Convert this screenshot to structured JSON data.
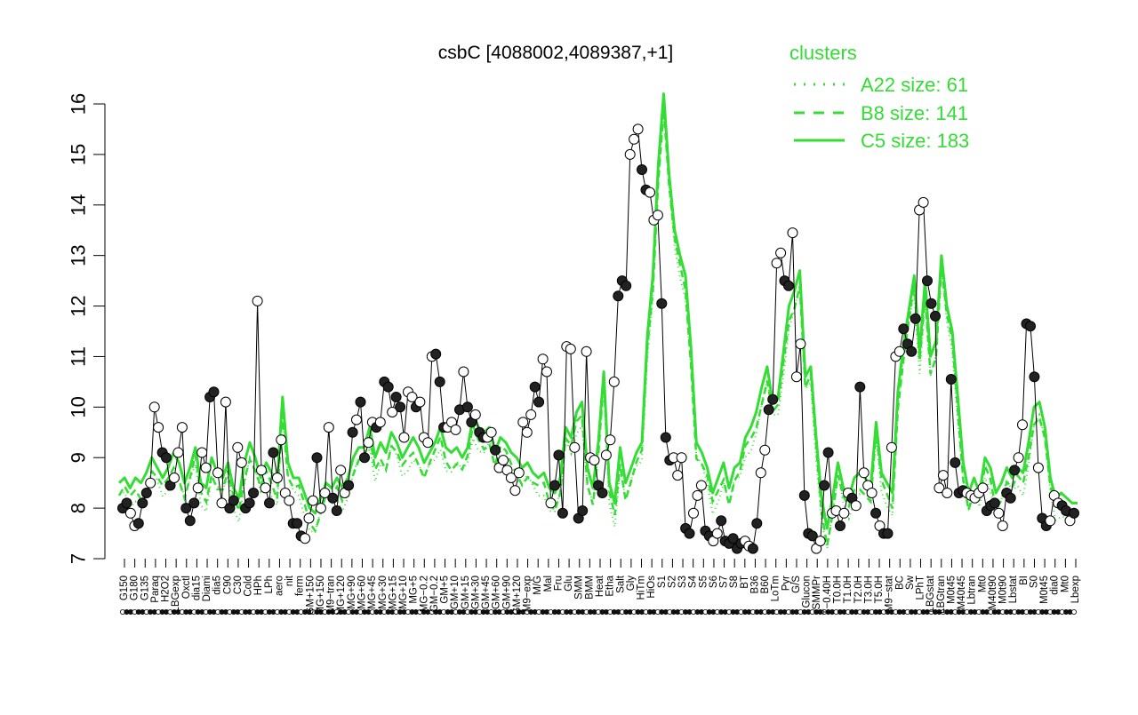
{
  "chart_data": {
    "type": "line",
    "title": "csbC [4088002,4089387,+1]",
    "xlabel": "",
    "ylabel": "",
    "ylim": [
      7,
      16
    ],
    "yticks": [
      7,
      8,
      9,
      10,
      11,
      12,
      13,
      14,
      15,
      16
    ],
    "xtick_labels": [
      "G150",
      "G180",
      "G135",
      "Paraq",
      "H2O2",
      "LBGexp",
      "Oxctl",
      "dia15",
      "Diami",
      "dia5",
      "C90",
      "C30",
      "Cold",
      "HPh",
      "LPh",
      "aero",
      "nit",
      "ferm",
      "GM+150",
      "MG+150",
      "M9−tran",
      "MG+120",
      "MG+90",
      "MG+60",
      "MG+45",
      "MG+30",
      "MG+15",
      "MG+10",
      "MG+5",
      "MG−0.2",
      "GM−0.2",
      "GM+5",
      "GM+10",
      "GM+15",
      "GM+30",
      "GM+45",
      "GM+60",
      "GM+90",
      "GM+120",
      "M9−exp",
      "M/G",
      "Mal",
      "Fru",
      "Glu",
      "SMM",
      "BMM",
      "Heat",
      "Etha",
      "Salt",
      "Gly",
      "HiTm",
      "HiOs",
      "S1",
      "S2",
      "S3",
      "S4",
      "S5",
      "S6",
      "S7",
      "S8",
      "BT",
      "B36",
      "B60",
      "LoTm",
      "Pyr",
      "G/S",
      "Glucon",
      "SMMPr",
      "T−0.40H",
      "T0.0H",
      "T1.0H",
      "T2.0H",
      "T3.0H",
      "T5.0H",
      "M9−stat",
      "BC",
      "Sw",
      "LPhT",
      "LBGstat",
      "LBGtran",
      "M0t45",
      "M40t45",
      "Lbtran",
      "Mt0",
      "M40t90",
      "M0t90",
      "Lbstat",
      "BI",
      "S0",
      "M0t45",
      "dia0",
      "Mt0",
      "Lbexp"
    ],
    "legend": {
      "title": "clusters",
      "placement": "top-right",
      "entries": [
        {
          "label": "A22 size: 61",
          "style": "dotted"
        },
        {
          "label": "B8 size: 141",
          "style": "dashed"
        },
        {
          "label": "C5 size: 183",
          "style": "solid"
        }
      ]
    },
    "colors": {
      "cluster": "#33dd33",
      "gene": "#000000",
      "axis": "#000000"
    },
    "points": [
      {
        "y": 8.0,
        "filled": true
      },
      {
        "y": 8.1,
        "filled": true
      },
      {
        "y": 7.9,
        "filled": false
      },
      {
        "y": 7.65,
        "filled": false
      },
      {
        "y": 7.7,
        "filled": true
      },
      {
        "y": 8.1,
        "filled": true
      },
      {
        "y": 8.3,
        "filled": true
      },
      {
        "y": 8.5,
        "filled": false
      },
      {
        "y": 10.0,
        "filled": false
      },
      {
        "y": 9.6,
        "filled": false
      },
      {
        "y": 9.1,
        "filled": true
      },
      {
        "y": 9.0,
        "filled": true
      },
      {
        "y": 8.45,
        "filled": true
      },
      {
        "y": 8.6,
        "filled": false
      },
      {
        "y": 9.1,
        "filled": false
      },
      {
        "y": 9.6,
        "filled": false
      },
      {
        "y": 8.0,
        "filled": true
      },
      {
        "y": 7.75,
        "filled": true
      },
      {
        "y": 8.1,
        "filled": true
      },
      {
        "y": 8.4,
        "filled": false
      },
      {
        "y": 9.1,
        "filled": false
      },
      {
        "y": 8.8,
        "filled": false
      },
      {
        "y": 10.2,
        "filled": true
      },
      {
        "y": 10.3,
        "filled": true
      },
      {
        "y": 8.7,
        "filled": false
      },
      {
        "y": 8.1,
        "filled": false
      },
      {
        "y": 10.1,
        "filled": false
      },
      {
        "y": 8.0,
        "filled": true
      },
      {
        "y": 8.15,
        "filled": true
      },
      {
        "y": 9.2,
        "filled": false
      },
      {
        "y": 8.9,
        "filled": false
      },
      {
        "y": 8.0,
        "filled": true
      },
      {
        "y": 8.1,
        "filled": true
      },
      {
        "y": 8.3,
        "filled": true
      },
      {
        "y": 12.1,
        "filled": false
      },
      {
        "y": 8.75,
        "filled": false
      },
      {
        "y": 8.4,
        "filled": false
      },
      {
        "y": 8.1,
        "filled": true
      },
      {
        "y": 9.1,
        "filled": true
      },
      {
        "y": 8.6,
        "filled": false
      },
      {
        "y": 9.35,
        "filled": false
      },
      {
        "y": 8.3,
        "filled": false
      },
      {
        "y": 8.15,
        "filled": false
      },
      {
        "y": 7.7,
        "filled": true
      },
      {
        "y": 7.7,
        "filled": true
      },
      {
        "y": 7.45,
        "filled": true
      },
      {
        "y": 7.4,
        "filled": false
      },
      {
        "y": 7.8,
        "filled": false
      },
      {
        "y": 8.15,
        "filled": false
      },
      {
        "y": 9.0,
        "filled": true
      },
      {
        "y": 8.0,
        "filled": false
      },
      {
        "y": 8.3,
        "filled": false
      },
      {
        "y": 9.6,
        "filled": false
      },
      {
        "y": 8.2,
        "filled": true
      },
      {
        "y": 7.95,
        "filled": true
      },
      {
        "y": 8.75,
        "filled": false
      },
      {
        "y": 8.3,
        "filled": false
      },
      {
        "y": 8.45,
        "filled": true
      },
      {
        "y": 9.5,
        "filled": true
      },
      {
        "y": 9.75,
        "filled": false
      },
      {
        "y": 10.1,
        "filled": true
      },
      {
        "y": 9.0,
        "filled": true
      },
      {
        "y": 9.3,
        "filled": false
      },
      {
        "y": 9.7,
        "filled": false
      },
      {
        "y": 9.6,
        "filled": true
      },
      {
        "y": 9.7,
        "filled": false
      },
      {
        "y": 10.5,
        "filled": true
      },
      {
        "y": 10.4,
        "filled": true
      },
      {
        "y": 9.9,
        "filled": false
      },
      {
        "y": 10.2,
        "filled": true
      },
      {
        "y": 10.0,
        "filled": true
      },
      {
        "y": 9.4,
        "filled": false
      },
      {
        "y": 10.3,
        "filled": false
      },
      {
        "y": 10.2,
        "filled": false
      },
      {
        "y": 10.0,
        "filled": true
      },
      {
        "y": 10.1,
        "filled": false
      },
      {
        "y": 9.4,
        "filled": false
      },
      {
        "y": 9.3,
        "filled": false
      },
      {
        "y": 11.0,
        "filled": false
      },
      {
        "y": 11.05,
        "filled": true
      },
      {
        "y": 10.5,
        "filled": true
      },
      {
        "y": 9.6,
        "filled": true
      },
      {
        "y": 9.6,
        "filled": false
      },
      {
        "y": 9.7,
        "filled": false
      },
      {
        "y": 9.55,
        "filled": false
      },
      {
        "y": 9.95,
        "filled": true
      },
      {
        "y": 10.7,
        "filled": false
      },
      {
        "y": 10.0,
        "filled": true
      },
      {
        "y": 9.7,
        "filled": true
      },
      {
        "y": 9.85,
        "filled": false
      },
      {
        "y": 9.5,
        "filled": true
      },
      {
        "y": 9.4,
        "filled": true
      },
      {
        "y": 9.4,
        "filled": false
      },
      {
        "y": 9.5,
        "filled": false
      },
      {
        "y": 9.15,
        "filled": true
      },
      {
        "y": 8.8,
        "filled": false
      },
      {
        "y": 8.95,
        "filled": false
      },
      {
        "y": 8.75,
        "filled": false
      },
      {
        "y": 8.6,
        "filled": false
      },
      {
        "y": 8.35,
        "filled": false
      },
      {
        "y": 8.7,
        "filled": false
      },
      {
        "y": 9.7,
        "filled": false
      },
      {
        "y": 9.5,
        "filled": false
      },
      {
        "y": 9.85,
        "filled": false
      },
      {
        "y": 10.4,
        "filled": true
      },
      {
        "y": 10.1,
        "filled": true
      },
      {
        "y": 10.95,
        "filled": false
      },
      {
        "y": 10.7,
        "filled": false
      },
      {
        "y": 8.1,
        "filled": false
      },
      {
        "y": 8.45,
        "filled": true
      },
      {
        "y": 9.05,
        "filled": true
      },
      {
        "y": 7.9,
        "filled": true
      },
      {
        "y": 11.2,
        "filled": false
      },
      {
        "y": 11.15,
        "filled": false
      },
      {
        "y": 9.2,
        "filled": false
      },
      {
        "y": 7.8,
        "filled": true
      },
      {
        "y": 7.95,
        "filled": true
      },
      {
        "y": 11.1,
        "filled": false
      },
      {
        "y": 9.0,
        "filled": false
      },
      {
        "y": 8.95,
        "filled": false
      },
      {
        "y": 8.45,
        "filled": true
      },
      {
        "y": 8.3,
        "filled": true
      },
      {
        "y": 9.05,
        "filled": false
      },
      {
        "y": 9.35,
        "filled": false
      },
      {
        "y": 10.5,
        "filled": false
      },
      {
        "y": 12.2,
        "filled": true
      },
      {
        "y": 12.5,
        "filled": true
      },
      {
        "y": 12.4,
        "filled": true
      },
      {
        "y": 15.0,
        "filled": false
      },
      {
        "y": 15.3,
        "filled": false
      },
      {
        "y": 15.5,
        "filled": false
      },
      {
        "y": 14.7,
        "filled": true
      },
      {
        "y": 14.3,
        "filled": true
      },
      {
        "y": 14.25,
        "filled": false
      },
      {
        "y": 13.7,
        "filled": false
      },
      {
        "y": 13.8,
        "filled": false
      },
      {
        "y": 12.05,
        "filled": true
      },
      {
        "y": 9.4,
        "filled": true
      },
      {
        "y": 8.95,
        "filled": true
      },
      {
        "y": 9.0,
        "filled": false
      },
      {
        "y": 8.65,
        "filled": false
      },
      {
        "y": 9.0,
        "filled": false
      },
      {
        "y": 7.6,
        "filled": true
      },
      {
        "y": 7.5,
        "filled": true
      },
      {
        "y": 7.9,
        "filled": false
      },
      {
        "y": 8.25,
        "filled": false
      },
      {
        "y": 8.45,
        "filled": false
      },
      {
        "y": 7.55,
        "filled": true
      },
      {
        "y": 7.45,
        "filled": true
      },
      {
        "y": 7.35,
        "filled": false
      },
      {
        "y": 7.5,
        "filled": false
      },
      {
        "y": 7.75,
        "filled": true
      },
      {
        "y": 7.35,
        "filled": true
      },
      {
        "y": 7.3,
        "filled": true
      },
      {
        "y": 7.4,
        "filled": true
      },
      {
        "y": 7.2,
        "filled": true
      },
      {
        "y": 7.3,
        "filled": true
      },
      {
        "y": 7.35,
        "filled": false
      },
      {
        "y": 7.25,
        "filled": false
      },
      {
        "y": 7.2,
        "filled": true
      },
      {
        "y": 7.7,
        "filled": true
      },
      {
        "y": 8.7,
        "filled": false
      },
      {
        "y": 9.15,
        "filled": false
      },
      {
        "y": 9.95,
        "filled": true
      },
      {
        "y": 10.15,
        "filled": true
      },
      {
        "y": 12.85,
        "filled": false
      },
      {
        "y": 13.05,
        "filled": false
      },
      {
        "y": 12.5,
        "filled": true
      },
      {
        "y": 12.4,
        "filled": true
      },
      {
        "y": 13.45,
        "filled": false
      },
      {
        "y": 10.6,
        "filled": false
      },
      {
        "y": 11.25,
        "filled": false
      },
      {
        "y": 8.25,
        "filled": true
      },
      {
        "y": 7.5,
        "filled": true
      },
      {
        "y": 7.45,
        "filled": true
      },
      {
        "y": 7.2,
        "filled": false
      },
      {
        "y": 7.35,
        "filled": false
      },
      {
        "y": 8.45,
        "filled": true
      },
      {
        "y": 9.1,
        "filled": true
      },
      {
        "y": 7.9,
        "filled": false
      },
      {
        "y": 7.95,
        "filled": false
      },
      {
        "y": 7.65,
        "filled": true
      },
      {
        "y": 7.9,
        "filled": false
      },
      {
        "y": 8.3,
        "filled": false
      },
      {
        "y": 8.2,
        "filled": true
      },
      {
        "y": 8.05,
        "filled": false
      },
      {
        "y": 10.4,
        "filled": true
      },
      {
        "y": 8.7,
        "filled": false
      },
      {
        "y": 8.45,
        "filled": false
      },
      {
        "y": 8.3,
        "filled": false
      },
      {
        "y": 7.9,
        "filled": true
      },
      {
        "y": 7.65,
        "filled": false
      },
      {
        "y": 7.5,
        "filled": true
      },
      {
        "y": 7.5,
        "filled": true
      },
      {
        "y": 9.2,
        "filled": false
      },
      {
        "y": 11.0,
        "filled": false
      },
      {
        "y": 11.1,
        "filled": false
      },
      {
        "y": 11.55,
        "filled": true
      },
      {
        "y": 11.25,
        "filled": true
      },
      {
        "y": 11.1,
        "filled": true
      },
      {
        "y": 11.75,
        "filled": true
      },
      {
        "y": 13.9,
        "filled": false
      },
      {
        "y": 14.05,
        "filled": false
      },
      {
        "y": 12.5,
        "filled": true
      },
      {
        "y": 12.05,
        "filled": true
      },
      {
        "y": 11.8,
        "filled": true
      },
      {
        "y": 8.4,
        "filled": false
      },
      {
        "y": 8.65,
        "filled": false
      },
      {
        "y": 8.3,
        "filled": false
      },
      {
        "y": 10.55,
        "filled": true
      },
      {
        "y": 8.9,
        "filled": true
      },
      {
        "y": 8.3,
        "filled": true
      },
      {
        "y": 8.35,
        "filled": true
      },
      {
        "y": 8.3,
        "filled": false
      },
      {
        "y": 8.25,
        "filled": false
      },
      {
        "y": 8.2,
        "filled": false
      },
      {
        "y": 8.3,
        "filled": false
      },
      {
        "y": 8.4,
        "filled": false
      },
      {
        "y": 7.95,
        "filled": true
      },
      {
        "y": 8.05,
        "filled": true
      },
      {
        "y": 8.1,
        "filled": true
      },
      {
        "y": 7.9,
        "filled": false
      },
      {
        "y": 7.65,
        "filled": false
      },
      {
        "y": 8.3,
        "filled": true
      },
      {
        "y": 8.2,
        "filled": true
      },
      {
        "y": 8.75,
        "filled": true
      },
      {
        "y": 9.0,
        "filled": false
      },
      {
        "y": 9.65,
        "filled": false
      },
      {
        "y": 11.65,
        "filled": true
      },
      {
        "y": 11.6,
        "filled": true
      },
      {
        "y": 10.6,
        "filled": true
      },
      {
        "y": 8.8,
        "filled": false
      },
      {
        "y": 7.8,
        "filled": true
      },
      {
        "y": 7.65,
        "filled": true
      },
      {
        "y": 7.75,
        "filled": false
      },
      {
        "y": 8.25,
        "filled": false
      },
      {
        "y": 8.1,
        "filled": false
      },
      {
        "y": 8.05,
        "filled": true
      },
      {
        "y": 7.95,
        "filled": true
      },
      {
        "y": 7.75,
        "filled": false
      },
      {
        "y": 7.9,
        "filled": true
      }
    ],
    "cluster_c5": [
      8.5,
      8.6,
      8.4,
      8.6,
      8.5,
      8.7,
      9.0,
      8.8,
      8.6,
      8.8,
      9.1,
      8.9,
      8.5,
      8.8,
      9.2,
      8.5,
      8.4,
      9.0,
      8.7,
      8.6,
      8.9,
      8.4,
      8.2,
      8.9,
      9.3,
      9.0,
      8.6,
      8.9,
      8.7,
      8.5,
      10.2,
      8.9,
      8.6,
      8.6,
      8.3,
      8.0,
      7.9,
      8.2,
      8.5,
      8.4,
      8.6,
      8.4,
      8.6,
      9.0,
      9.2,
      9.2,
      9.6,
      9.0,
      9.3,
      9.1,
      9.5,
      9.3,
      9.0,
      9.2,
      9.4,
      9.2,
      8.9,
      9.1,
      9.3,
      9.6,
      9.2,
      9.1,
      9.2,
      9.0,
      9.2,
      9.8,
      9.6,
      9.5,
      9.6,
      9.1,
      9.4,
      9.3,
      9.1,
      9.0,
      8.8,
      8.9,
      8.7,
      8.6,
      8.7,
      8.4,
      8.3,
      8.6,
      9.6,
      9.4,
      9.9,
      10.1,
      8.8,
      8.4,
      9.3,
      10.7,
      8.5,
      8.1,
      9.2,
      8.5,
      8.8,
      9.1,
      9.3,
      11.4,
      12.6,
      14.8,
      16.2,
      14.6,
      13.5,
      13.0,
      12.6,
      11.2,
      9.3,
      9.1,
      8.8,
      8.3,
      8.6,
      8.9,
      8.4,
      8.8,
      8.9,
      9.4,
      9.6,
      9.9,
      10.4,
      10.8,
      10.1,
      10.2,
      11.1,
      12.0,
      12.3,
      12.7,
      10.6,
      10.8,
      9.4,
      8.2,
      7.6,
      8.2,
      8.9,
      8.4,
      8.2,
      8.6,
      8.7,
      8.6,
      8.4,
      9.7,
      8.7,
      8.5,
      8.3,
      10.3,
      11.2,
      11.9,
      12.6,
      11.1,
      12.5,
      11.0,
      11.3,
      13.0,
      12.0,
      11.5,
      10.2,
      8.9,
      8.3,
      8.6,
      8.3,
      9.0,
      8.8,
      8.3,
      8.5,
      8.8,
      8.6,
      8.8,
      8.7,
      9.3,
      10.0,
      10.1,
      9.6,
      8.6,
      8.2,
      8.3,
      8.2,
      8.1,
      8.1
    ]
  }
}
